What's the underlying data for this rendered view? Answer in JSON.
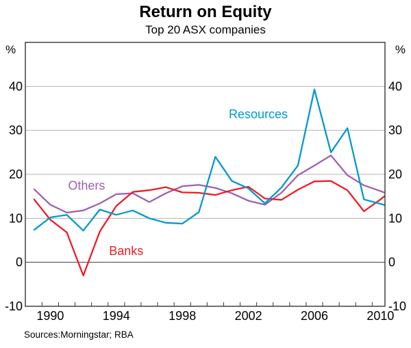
{
  "header": {
    "title": "Return on Equity",
    "subtitle": "Top 20 ASX companies"
  },
  "footer": {
    "source_note": "Sources:Morningstar; RBA"
  },
  "y_axis_unit": "%",
  "chart_data": {
    "type": "line",
    "title": "Return on Equity",
    "subtitle": "Top 20 ASX companies",
    "ylabel": "%",
    "grid": "horizontal",
    "legend_position": "inline-labels",
    "x_years": [
      1989,
      1990,
      1991,
      1992,
      1993,
      1994,
      1995,
      1996,
      1997,
      1998,
      1999,
      2000,
      2001,
      2002,
      2003,
      2004,
      2005,
      2006,
      2007,
      2008,
      2009,
      2010
    ],
    "x_tick_labels": [
      "1990",
      "1994",
      "1998",
      "2002",
      "2006",
      "2010"
    ],
    "x_label_years": [
      1990,
      1994,
      1998,
      2002,
      2006,
      2010
    ],
    "x_range": [
      1988.5,
      2010.3
    ],
    "y_ticks": [
      40,
      30,
      20,
      10,
      0,
      -10
    ],
    "y_range": [
      -10,
      50
    ],
    "colors": {
      "banks": "#ed1c24",
      "resources": "#0099cc",
      "others": "#9e5fb0",
      "gridline": "#b3b3b3",
      "zero_line": "#3a3a3a",
      "frame": "#333333"
    },
    "series": [
      {
        "name": "Others",
        "color": "#9e5fb0",
        "label_at": {
          "x": 1992.2,
          "y": 17.4
        },
        "values": [
          16.7,
          13.1,
          11.3,
          11.8,
          13.4,
          15.5,
          15.7,
          13.7,
          15.7,
          17.3,
          17.6,
          16.9,
          15.7,
          14.0,
          13.1,
          15.8,
          19.8,
          22.0,
          24.3,
          19.8,
          17.5,
          16.2
        ]
      },
      {
        "name": "Banks",
        "color": "#ed1c24",
        "label_at": {
          "x": 1994.6,
          "y": 2.6
        },
        "values": [
          14.4,
          9.7,
          6.8,
          -3.0,
          7.0,
          12.8,
          16.0,
          16.4,
          17.1,
          15.9,
          15.8,
          15.3,
          16.4,
          17.2,
          14.5,
          14.2,
          16.5,
          18.4,
          18.5,
          16.4,
          11.6,
          14.3
        ]
      },
      {
        "name": "Resources",
        "color": "#0099cc",
        "label_at": {
          "x": 2002.6,
          "y": 33.7
        },
        "values": [
          7.3,
          10.2,
          10.8,
          7.2,
          12.0,
          10.8,
          11.8,
          10.0,
          9.0,
          8.8,
          11.4,
          24.0,
          18.5,
          16.8,
          13.4,
          17.0,
          22.0,
          39.3,
          25.0,
          30.5,
          14.3,
          13.3
        ]
      }
    ]
  }
}
